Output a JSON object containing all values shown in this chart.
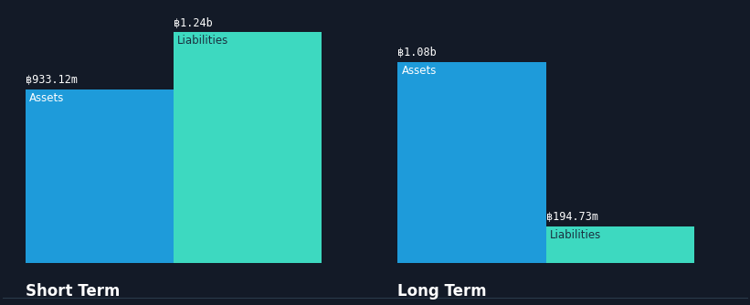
{
  "background_color": "#131a27",
  "groups": [
    "Short Term",
    "Long Term"
  ],
  "values": {
    "Short Term": {
      "Assets": 933.12,
      "Liabilities": 1240.0
    },
    "Long Term": {
      "Assets": 1080.0,
      "Liabilities": 194.73
    }
  },
  "display_labels": {
    "Short Term": {
      "Assets": "฿933.12m",
      "Liabilities": "฿1.24b"
    },
    "Long Term": {
      "Assets": "฿1.08b",
      "Liabilities": "฿194.73m"
    }
  },
  "bar_colors": {
    "Assets": "#1e9bda",
    "Liabilities": "#3dd9c0"
  },
  "inside_label_colors": {
    "Assets": "#ffffff",
    "Liabilities": "#1a3040"
  },
  "text_color": "#ffffff",
  "group_label_fontsize": 12,
  "value_label_fontsize": 8.5,
  "bar_label_fontsize": 8.5,
  "figsize": [
    8.21,
    3.34
  ],
  "dpi": 100,
  "y_max": 1400,
  "bar_bottom": 0
}
